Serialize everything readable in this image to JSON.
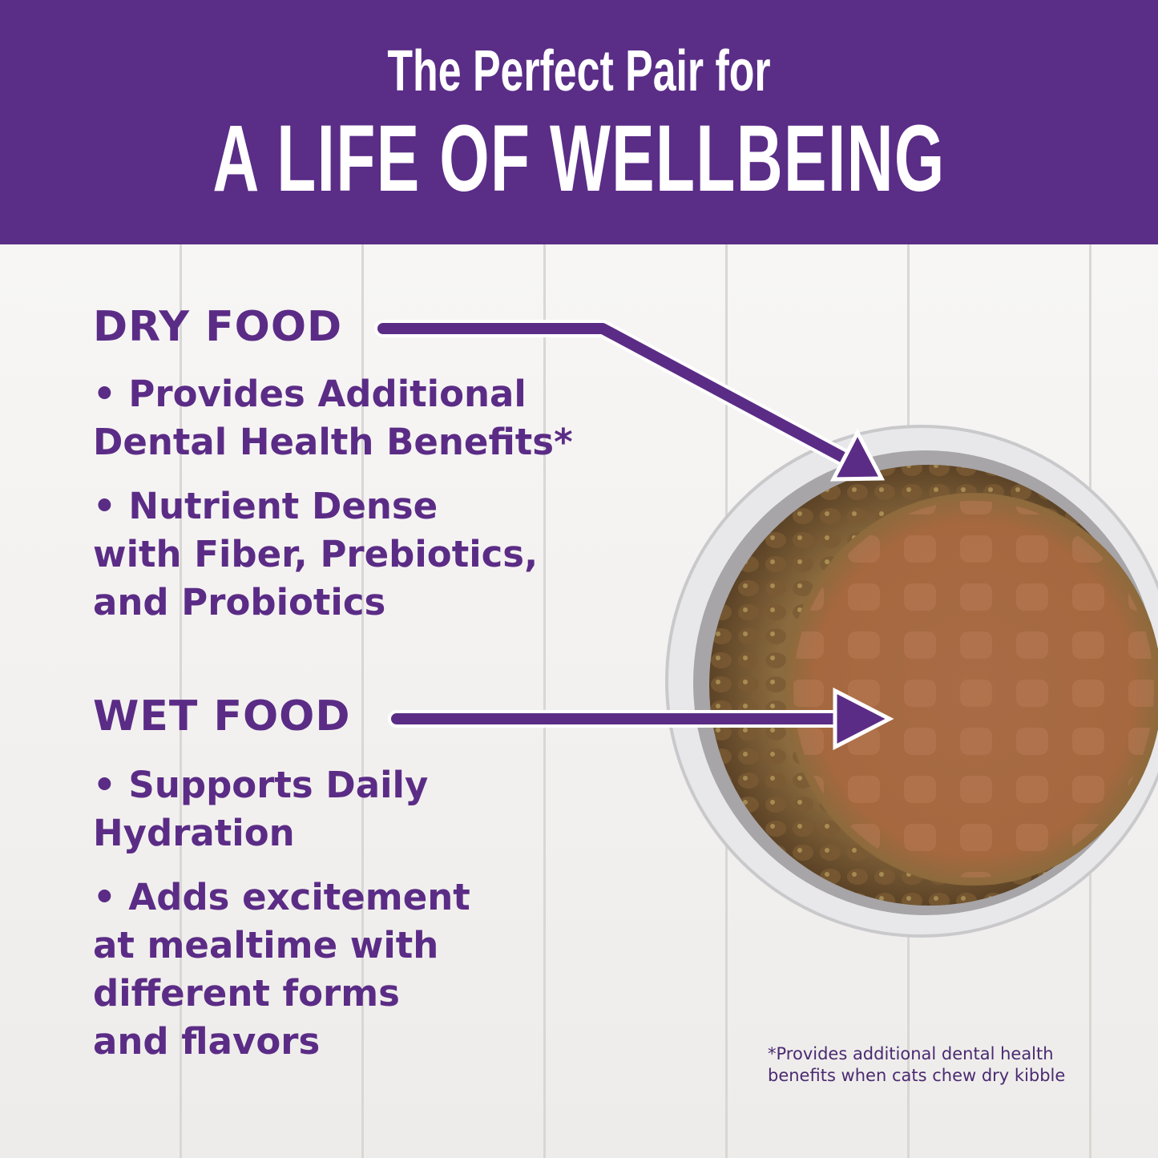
{
  "header": {
    "subtitle": "The Perfect Pair for",
    "title": "A LIFE OF WELLBEING"
  },
  "dry_food": {
    "heading": "DRY FOOD",
    "bullets": [
      {
        "lines": [
          "• Provides Additional",
          "Dental Health Benefits*"
        ]
      },
      {
        "lines": [
          "• Nutrient Dense",
          "with Fiber, Prebiotics,",
          "and Probiotics"
        ]
      }
    ]
  },
  "wet_food": {
    "heading": "WET FOOD",
    "bullets": [
      {
        "lines": [
          "• Supports Daily",
          "Hydration"
        ]
      },
      {
        "lines": [
          "• Adds excitement",
          "at mealtime with",
          "different forms",
          "and flavors"
        ]
      }
    ]
  },
  "footnote": {
    "lines": [
      "*Provides additional dental health",
      "benefits when cats chew dry kibble"
    ]
  },
  "colors": {
    "brand_purple": "#5a2d87",
    "text_purple": "#5b2c86"
  }
}
